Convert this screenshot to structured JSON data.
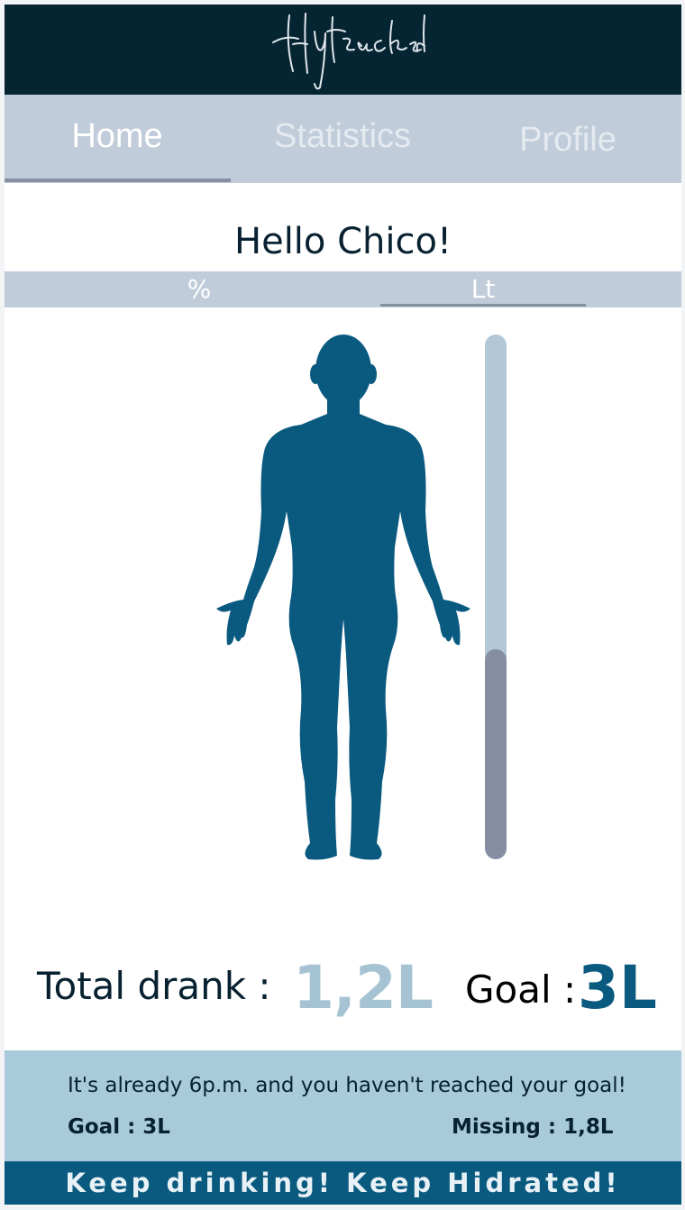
{
  "app": {
    "logo_text": "Hyltracked"
  },
  "tabs": [
    {
      "label": "Home",
      "active": true
    },
    {
      "label": "Statistics",
      "active": false
    },
    {
      "label": "Profile",
      "active": false
    }
  ],
  "greeting": "Hello Chico!",
  "unit_toggle": {
    "options": [
      "%",
      "Lt"
    ],
    "selected": "Lt"
  },
  "hydration": {
    "drank_liters": 1.2,
    "goal_liters": 3,
    "progress_fraction": 0.4
  },
  "summary": {
    "total_label": "Total drank :",
    "total_value": "1,2L",
    "goal_label": "Goal :",
    "goal_value": "3L"
  },
  "notice": {
    "message": "It's already 6p.m. and you haven't reached your goal!",
    "goal": "Goal : 3L",
    "missing": "Missing : 1,8L"
  },
  "footer": "Keep drinking! Keep Hidrated!",
  "colors": {
    "header": "#062532",
    "tabs": "#c0ccd9",
    "body_figure": "#0a5a80",
    "meter_track": "#b3c8d6",
    "meter_fill": "#868fa1",
    "notice": "#a8cadb",
    "footer": "#0a5a80"
  },
  "icons": {
    "logo": "handwritten-logo",
    "figure": "human-body-silhouette"
  }
}
